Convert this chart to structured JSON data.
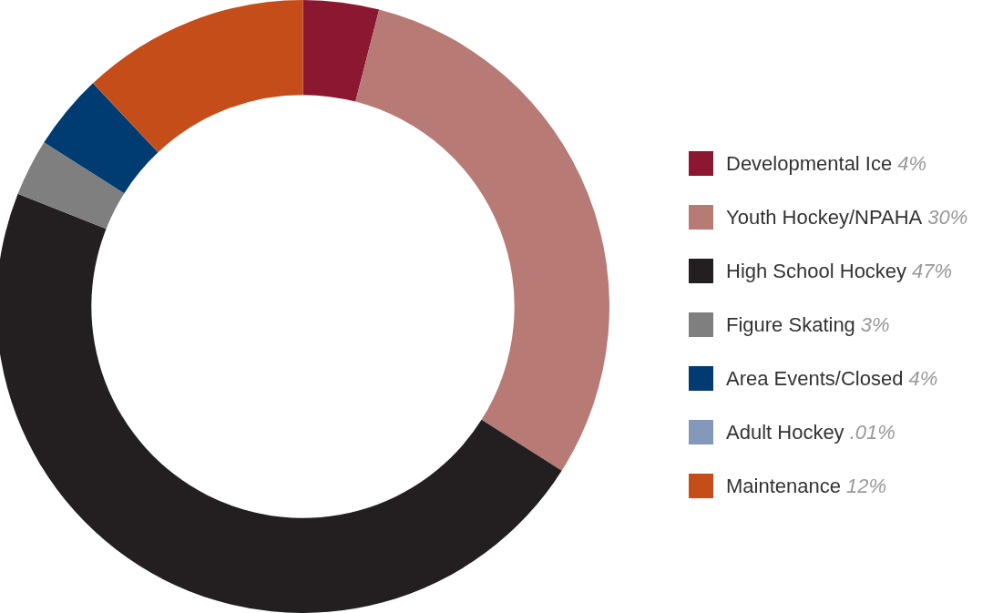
{
  "chart_data": {
    "type": "donut",
    "categories": [
      "Developmental Ice",
      "Youth Hockey/NPAHA",
      "High School Hockey",
      "Figure Skating",
      "Area Events/Closed",
      "Adult Hockey",
      "Maintenance"
    ],
    "values": [
      4,
      30,
      47,
      3,
      4,
      0.01,
      12
    ],
    "value_labels": [
      "4%",
      "30%",
      "47%",
      "3%",
      "4%",
      ".01%",
      "12%"
    ],
    "colors": [
      "#8b1730",
      "#b77a75",
      "#231f20",
      "#7f7f7f",
      "#003b71",
      "#8499ba",
      "#c44d1a"
    ],
    "legend": "right"
  }
}
